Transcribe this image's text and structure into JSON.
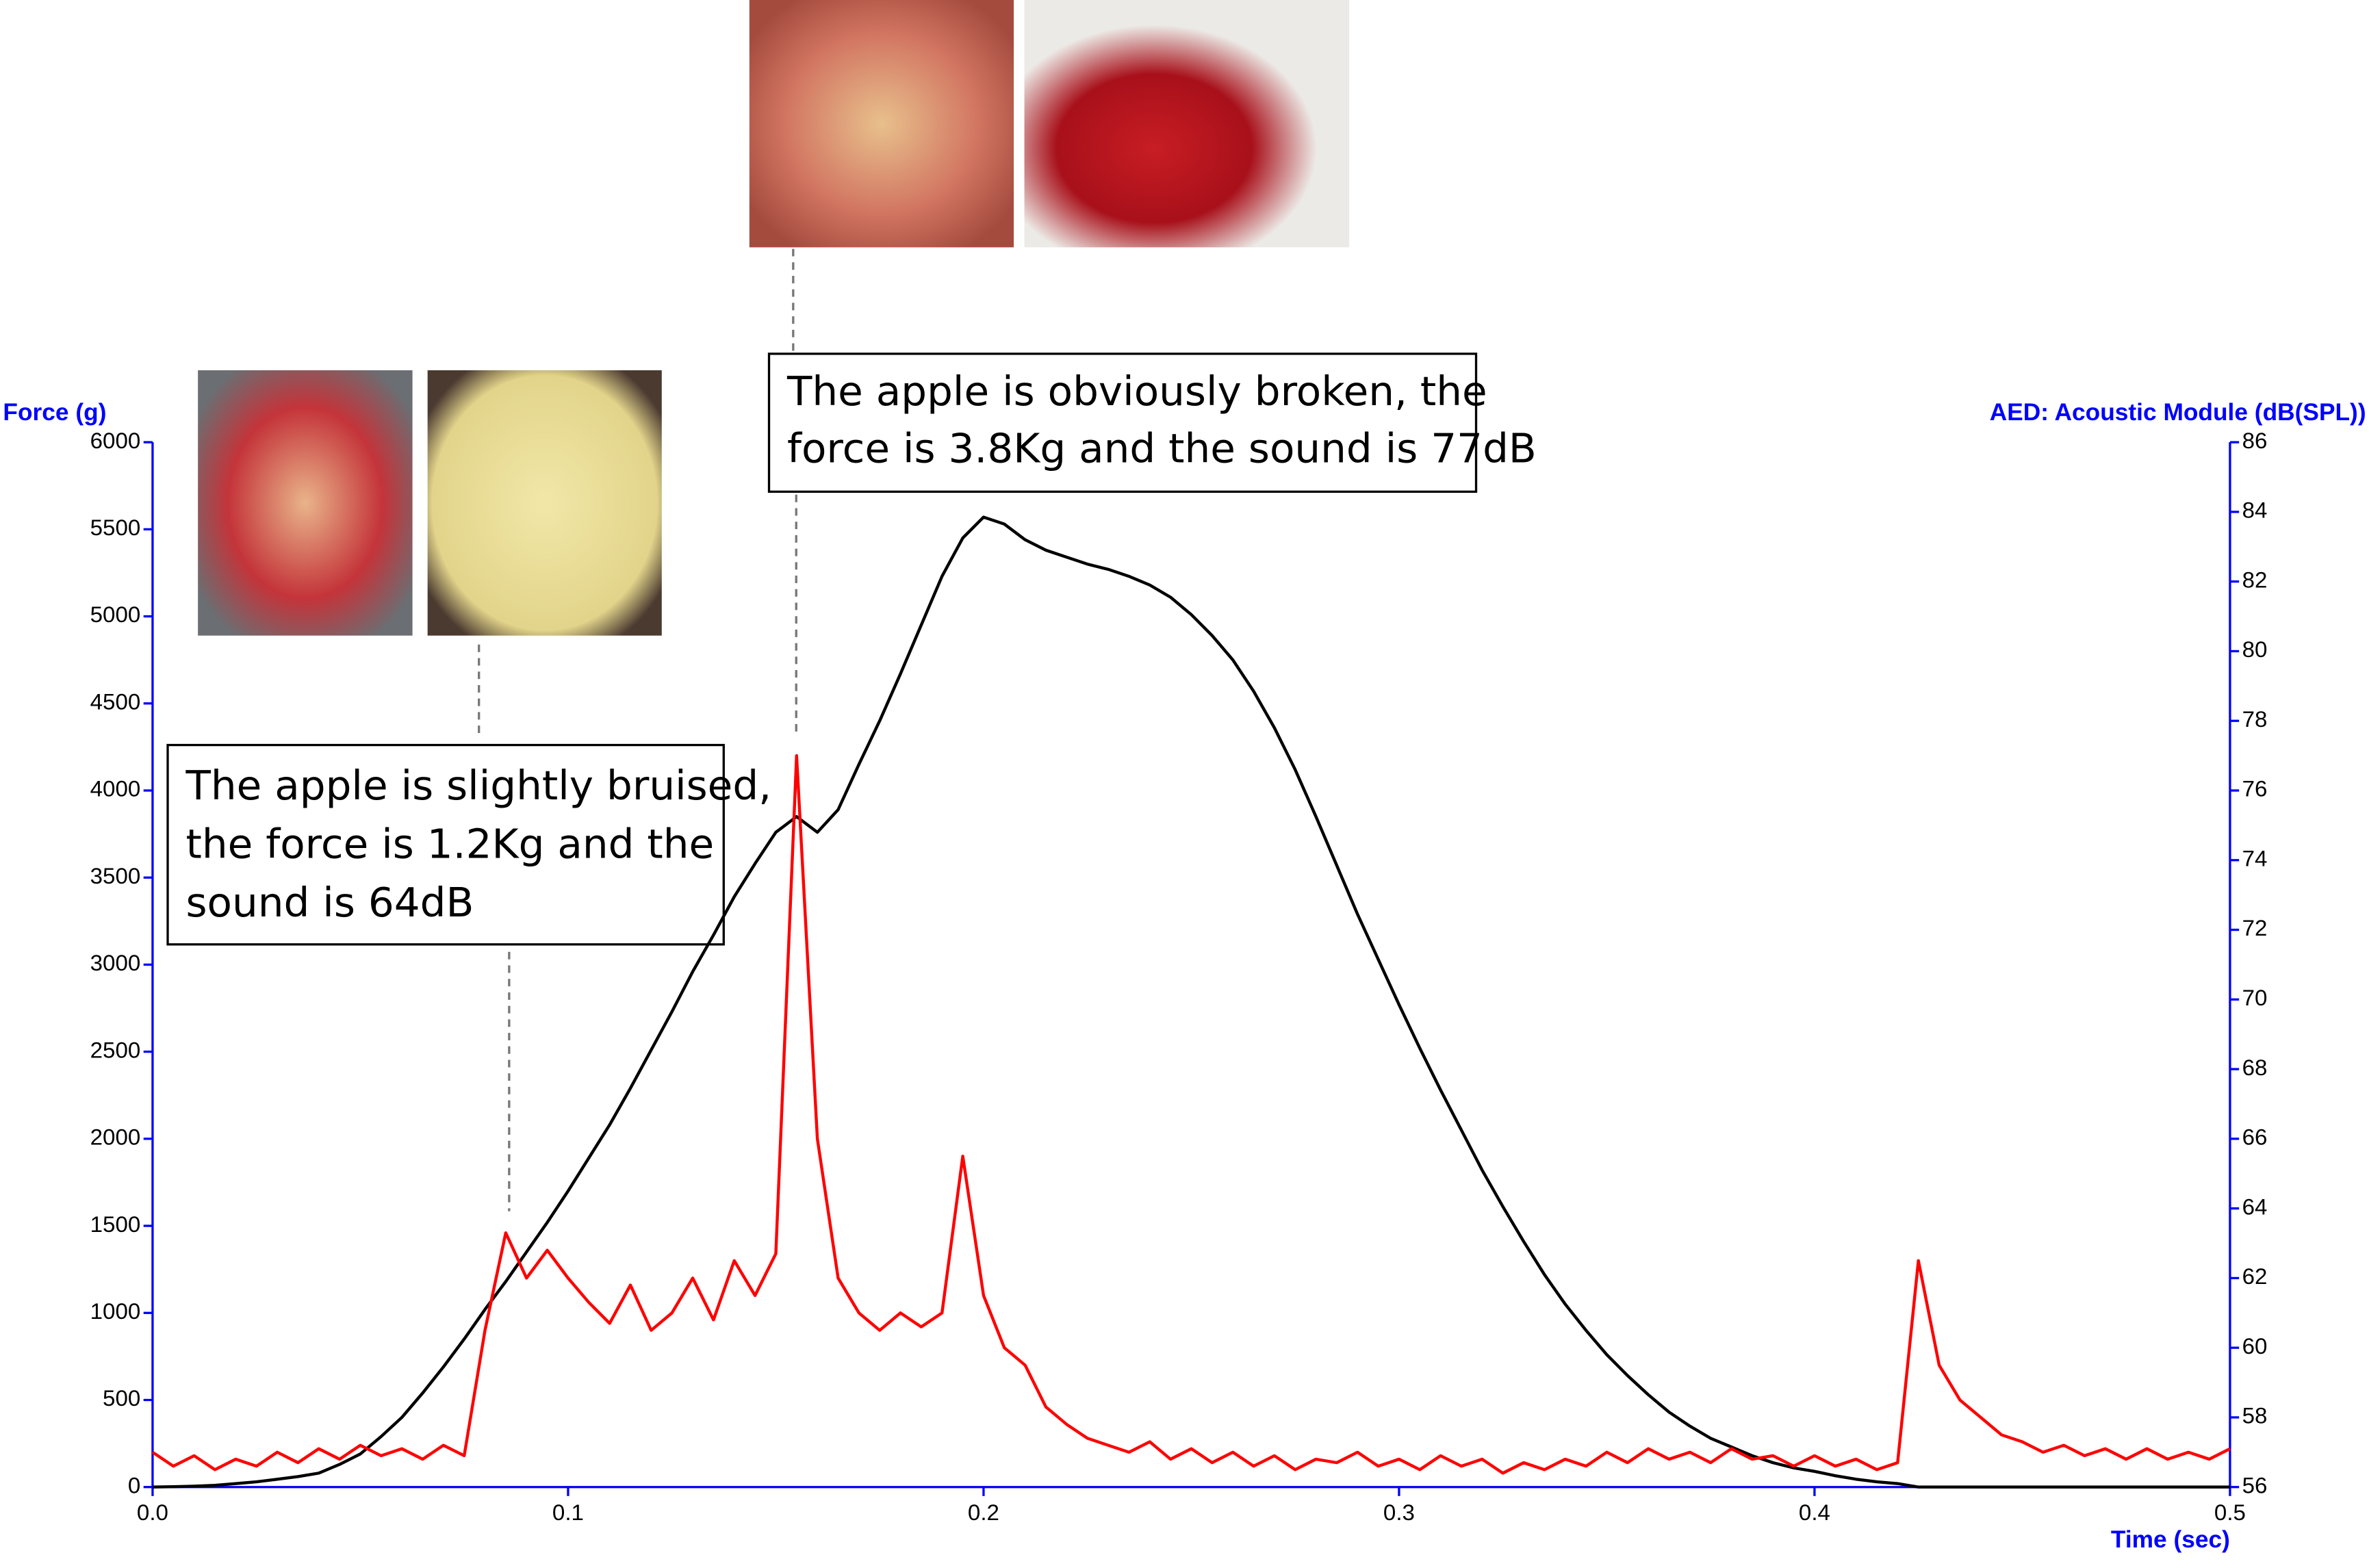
{
  "chart_data": {
    "type": "line",
    "xlabel": "Time (sec)",
    "ylabel": "Force (g)",
    "y2label": "AED: Acoustic Module (dB(SPL))",
    "x": [
      0,
      0.005,
      0.01,
      0.015,
      0.02,
      0.025,
      0.03,
      0.035,
      0.04,
      0.045,
      0.05,
      0.055,
      0.06,
      0.065,
      0.07,
      0.075,
      0.08,
      0.085,
      0.09,
      0.095,
      0.1,
      0.105,
      0.11,
      0.115,
      0.12,
      0.125,
      0.13,
      0.135,
      0.14,
      0.145,
      0.15,
      0.155,
      0.16,
      0.165,
      0.17,
      0.175,
      0.18,
      0.185,
      0.19,
      0.195,
      0.2,
      0.205,
      0.21,
      0.215,
      0.22,
      0.225,
      0.23,
      0.235,
      0.24,
      0.245,
      0.25,
      0.255,
      0.26,
      0.265,
      0.27,
      0.275,
      0.28,
      0.285,
      0.29,
      0.295,
      0.3,
      0.305,
      0.31,
      0.315,
      0.32,
      0.325,
      0.33,
      0.335,
      0.34,
      0.345,
      0.35,
      0.355,
      0.36,
      0.365,
      0.37,
      0.375,
      0.38,
      0.385,
      0.39,
      0.395,
      0.4,
      0.405,
      0.41,
      0.415,
      0.42,
      0.425,
      0.43,
      0.435,
      0.44,
      0.445,
      0.45,
      0.455,
      0.46,
      0.465,
      0.47,
      0.475,
      0.48,
      0.485,
      0.49,
      0.495,
      0.5
    ],
    "series": [
      {
        "color": "#000000",
        "values": [
          0,
          2,
          5,
          10,
          20,
          30,
          45,
          60,
          80,
          130,
          190,
          290,
          400,
          540,
          690,
          850,
          1020,
          1180,
          1350,
          1520,
          1700,
          1890,
          2080,
          2290,
          2510,
          2730,
          2960,
          3170,
          3390,
          3580,
          3760,
          3850,
          3760,
          3890,
          4150,
          4400,
          4670,
          4950,
          5230,
          5450,
          5570,
          5530,
          5440,
          5380,
          5340,
          5300,
          5270,
          5230,
          5180,
          5110,
          5010,
          4890,
          4750,
          4570,
          4360,
          4120,
          3850,
          3570,
          3290,
          3030,
          2770,
          2520,
          2280,
          2050,
          1820,
          1610,
          1410,
          1220,
          1050,
          900,
          760,
          640,
          530,
          430,
          350,
          280,
          230,
          180,
          140,
          110,
          90,
          65,
          45,
          30,
          20,
          0,
          0,
          0,
          0,
          0,
          0,
          0,
          0,
          0,
          0,
          0,
          0,
          0,
          0,
          0,
          0
        ]
      },
      {
        "color": "#ff0000",
        "axis": "y2",
        "values": [
          57.0,
          56.6,
          56.9,
          56.5,
          56.8,
          56.6,
          57.0,
          56.7,
          57.1,
          56.8,
          57.2,
          56.9,
          57.1,
          56.8,
          57.2,
          56.9,
          60.5,
          63.3,
          62.0,
          62.8,
          62.0,
          61.3,
          60.7,
          61.8,
          60.5,
          61.0,
          62.0,
          60.8,
          62.5,
          61.5,
          62.7,
          77.0,
          66.0,
          62.0,
          61.0,
          60.5,
          61.0,
          60.6,
          61.0,
          65.5,
          61.5,
          60.0,
          59.5,
          58.3,
          57.8,
          57.4,
          57.2,
          57.0,
          57.3,
          56.8,
          57.1,
          56.7,
          57.0,
          56.6,
          56.9,
          56.5,
          56.8,
          56.7,
          57.0,
          56.6,
          56.8,
          56.5,
          56.9,
          56.6,
          56.8,
          56.4,
          56.7,
          56.5,
          56.8,
          56.6,
          57.0,
          56.7,
          57.1,
          56.8,
          57.0,
          56.7,
          57.1,
          56.8,
          56.9,
          56.6,
          56.9,
          56.6,
          56.8,
          56.5,
          56.7,
          62.5,
          59.5,
          58.5,
          58.0,
          57.5,
          57.3,
          57.0,
          57.2,
          56.9,
          57.1,
          56.8,
          57.1,
          56.8,
          57.0,
          56.8,
          57.1
        ]
      }
    ],
    "xlim": [
      0,
      0.5
    ],
    "xticks": [
      {
        "value": 0,
        "label": "0.0"
      },
      0.1,
      0.2,
      0.3,
      0.4,
      0.5
    ],
    "ylim": [
      0,
      6000
    ],
    "yticks": [
      0,
      500,
      1000,
      1500,
      2000,
      2500,
      3000,
      3500,
      4000,
      4500,
      5000,
      5500,
      6000
    ],
    "y2lim": [
      56,
      86
    ],
    "y2ticks": [
      56,
      58,
      60,
      62,
      64,
      66,
      68,
      70,
      72,
      74,
      76,
      78,
      80,
      82,
      84,
      86
    ],
    "axis_color": "#0000ff",
    "annotations": [
      {
        "lines": [
          "The apple is slightly bruised,",
          "the force is 1.2Kg and the",
          "sound is 64dB"
        ]
      },
      {
        "lines": [
          "The apple is obviously broken, the",
          "force is 3.8Kg and the sound is 77dB"
        ]
      }
    ]
  }
}
